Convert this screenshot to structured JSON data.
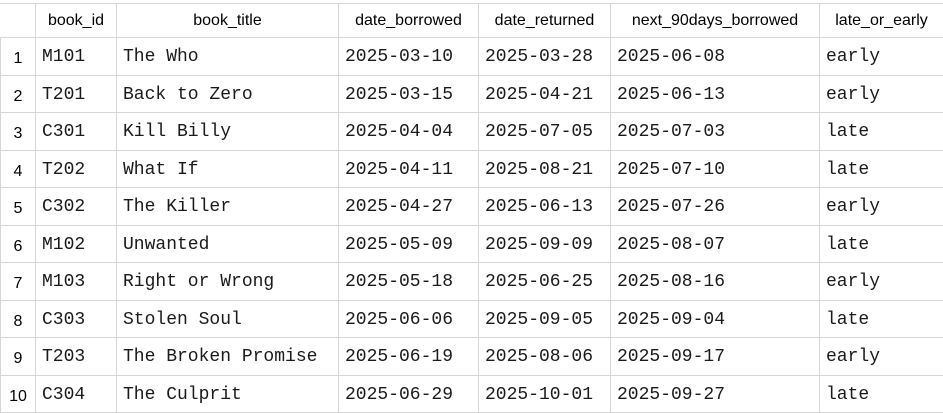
{
  "table": {
    "columns": [
      "book_id",
      "book_title",
      "date_borrowed",
      "date_returned",
      "next_90days_borrowed",
      "late_or_early"
    ],
    "rows": [
      {
        "num": "1",
        "cells": [
          "M101",
          "The Who",
          "2025-03-10",
          "2025-03-28",
          "2025-06-08",
          "early"
        ]
      },
      {
        "num": "2",
        "cells": [
          "T201",
          "Back to Zero",
          "2025-03-15",
          "2025-04-21",
          "2025-06-13",
          "early"
        ]
      },
      {
        "num": "3",
        "cells": [
          "C301",
          "Kill Billy",
          "2025-04-04",
          "2025-07-05",
          "2025-07-03",
          "late"
        ]
      },
      {
        "num": "4",
        "cells": [
          "T202",
          "What If",
          "2025-04-11",
          "2025-08-21",
          "2025-07-10",
          "late"
        ]
      },
      {
        "num": "5",
        "cells": [
          "C302",
          "The Killer",
          "2025-04-27",
          "2025-06-13",
          "2025-07-26",
          "early"
        ]
      },
      {
        "num": "6",
        "cells": [
          "M102",
          "Unwanted",
          "2025-05-09",
          "2025-09-09",
          "2025-08-07",
          "late"
        ]
      },
      {
        "num": "7",
        "cells": [
          "M103",
          "Right or Wrong",
          "2025-05-18",
          "2025-06-25",
          "2025-08-16",
          "early"
        ]
      },
      {
        "num": "8",
        "cells": [
          "C303",
          "Stolen Soul",
          "2025-06-06",
          "2025-09-05",
          "2025-09-04",
          "late"
        ]
      },
      {
        "num": "9",
        "cells": [
          "T203",
          "The Broken Promise",
          "2025-06-19",
          "2025-08-06",
          "2025-09-17",
          "early"
        ]
      },
      {
        "num": "10",
        "cells": [
          "C304",
          "The Culprit",
          "2025-06-29",
          "2025-10-01",
          "2025-09-27",
          "late"
        ]
      }
    ]
  }
}
